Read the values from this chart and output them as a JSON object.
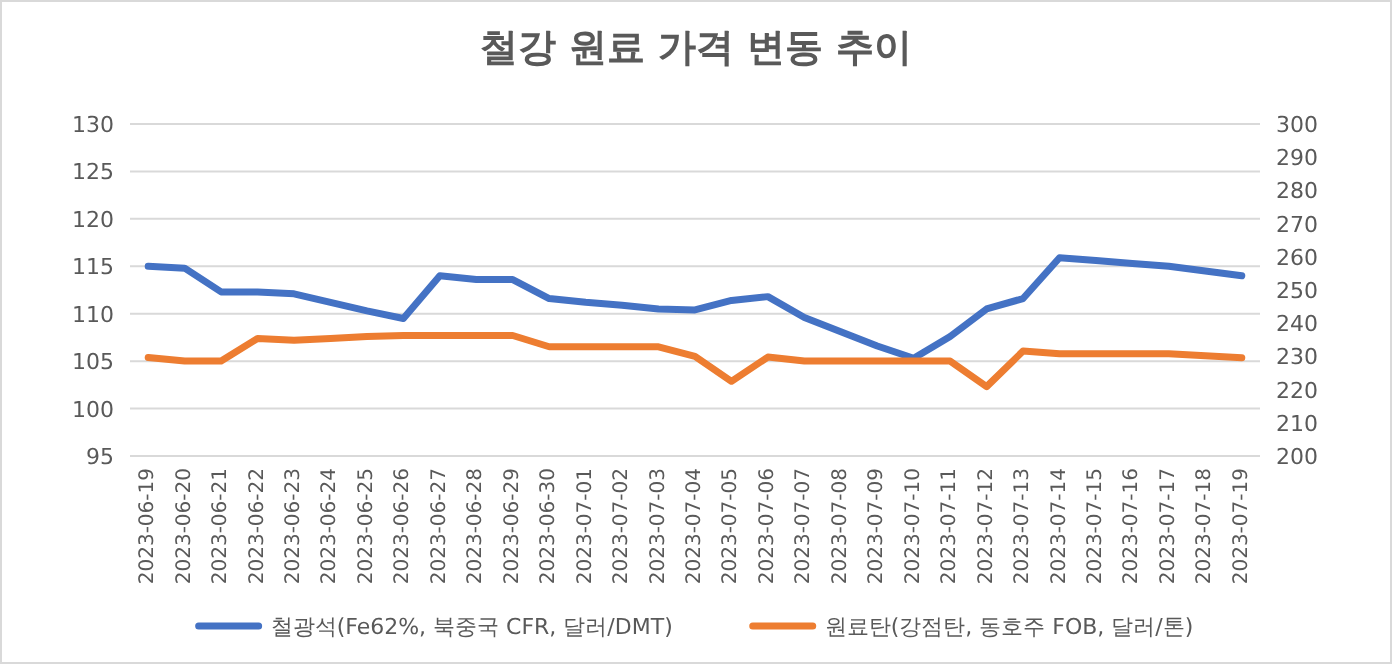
{
  "chart_data": {
    "type": "line",
    "title": "철강 원료 가격 변동 추이",
    "categories": [
      "2023-06-19",
      "2023-06-20",
      "2023-06-21",
      "2023-06-22",
      "2023-06-23",
      "2023-06-24",
      "2023-06-25",
      "2023-06-26",
      "2023-06-27",
      "2023-06-28",
      "2023-06-29",
      "2023-06-30",
      "2023-07-01",
      "2023-07-02",
      "2023-07-03",
      "2023-07-04",
      "2023-07-05",
      "2023-07-06",
      "2023-07-07",
      "2023-07-08",
      "2023-07-09",
      "2023-07-10",
      "2023-07-11",
      "2023-07-12",
      "2023-07-13",
      "2023-07-14",
      "2023-07-15",
      "2023-07-16",
      "2023-07-17",
      "2023-07-18",
      "2023-07-19"
    ],
    "series": [
      {
        "name": "철광석(Fe62%, 북중국 CFR, 달러/DMT)",
        "color": "#4472c4",
        "values": [
          115,
          114.8,
          112.3,
          112.3,
          112.1,
          111.2,
          110.3,
          109.5,
          114,
          113.6,
          113.6,
          111.6,
          111.2,
          110.9,
          110.5,
          110.4,
          111.4,
          111.8,
          109.6,
          108.1,
          106.6,
          105.3,
          107.6,
          110.5,
          111.6,
          115.9,
          115.6,
          115.3,
          115,
          114.5,
          114
        ]
      },
      {
        "name": "원료탄(강점탄, 동호주 FOB, 달러/톤)",
        "color": "#ed7d31",
        "axis": "y2",
        "values": [
          229.7,
          228.6,
          228.6,
          235.4,
          234.9,
          235.4,
          236,
          236.3,
          236.3,
          236.3,
          236.3,
          232.9,
          232.9,
          232.9,
          232.9,
          230,
          222.5,
          229.8,
          228.6,
          228.6,
          228.6,
          228.6,
          228.6,
          220.9,
          231.6,
          230.8,
          230.8,
          230.8,
          230.8,
          230.2,
          229.6
        ]
      }
    ],
    "ylim": [
      95,
      130
    ],
    "yticks": [
      95,
      100,
      105,
      110,
      115,
      120,
      125,
      130
    ],
    "y2lim": [
      200,
      300
    ],
    "y2ticks": [
      200,
      210,
      220,
      230,
      240,
      250,
      260,
      270,
      280,
      290,
      300
    ],
    "grid": "y",
    "legend": "bottom"
  }
}
